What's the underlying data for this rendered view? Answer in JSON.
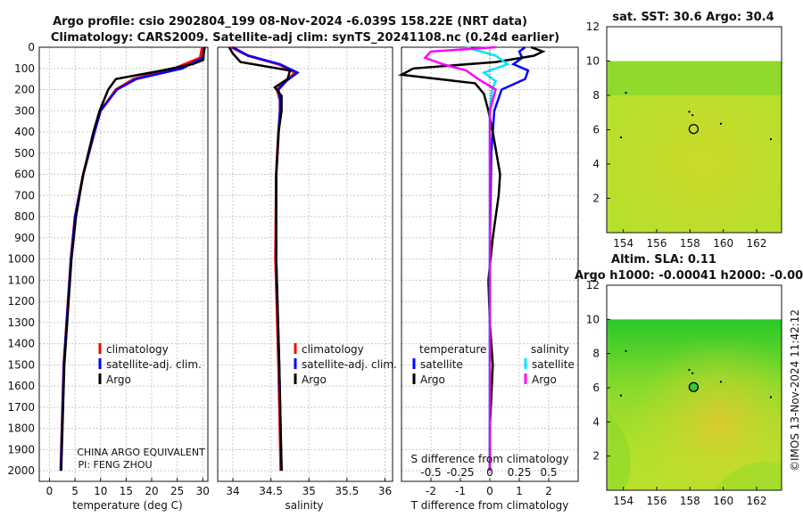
{
  "figure": {
    "title_line1": "Argo profile: csio 2902804_199 08-Nov-2024 -6.039S 158.22E (NRT data)",
    "title_line2": "Climatology: CARS2009. Satellite-adj clim: synTS_20241108.nc (0.24d earlier)",
    "watermark": "©IMOS 13-Nov-2024 11:42:12",
    "pi_line1": "CHINA ARGO EQUIVALENT",
    "pi_line2": "PI: FENG ZHOU"
  },
  "colors": {
    "climatology": "#ff0000",
    "satellite": "#0000ff",
    "argo": "#000000",
    "sat_salinity": "#00e5ff",
    "argo_salinity": "#ff00ff",
    "map_ocean": "#b0e030",
    "map_hot": "#e8c830",
    "map_cool": "#30cc30"
  },
  "chart_data": [
    {
      "type": "line",
      "name": "temperature",
      "xlabel": "temperature (deg C)",
      "xlim": [
        -2,
        31
      ],
      "xticks": [
        0,
        5,
        10,
        15,
        20,
        25,
        30
      ],
      "ylim": [
        0,
        2050
      ],
      "yticks": [
        0,
        100,
        200,
        300,
        400,
        500,
        600,
        700,
        800,
        900,
        1000,
        1100,
        1200,
        1300,
        1400,
        1500,
        1600,
        1700,
        1800,
        1900,
        2000
      ],
      "legend": [
        "climatology",
        "satellite-adj. clim.",
        "Argo"
      ],
      "series": [
        {
          "name": "climatology",
          "depth": [
            0,
            50,
            100,
            150,
            200,
            300,
            400,
            600,
            800,
            1000,
            1500,
            2000
          ],
          "values": [
            29.9,
            29.5,
            24.5,
            16.5,
            13,
            10,
            8.8,
            6.6,
            5,
            4.2,
            2.8,
            2.2
          ]
        },
        {
          "name": "satellite-adj. clim.",
          "depth": [
            0,
            50,
            100,
            150,
            200,
            300,
            400,
            600,
            800,
            1000,
            1500,
            2000
          ],
          "values": [
            30.4,
            30,
            26,
            17,
            13.2,
            10,
            8.8,
            6.6,
            5,
            4.2,
            2.8,
            2.2
          ]
        },
        {
          "name": "Argo",
          "depth": [
            0,
            60,
            80,
            110,
            150,
            200,
            300,
            400,
            600,
            800,
            1000,
            1500,
            2000
          ],
          "values": [
            30.3,
            30.1,
            28,
            22,
            13,
            11.5,
            9.8,
            8.6,
            6.6,
            5.2,
            4.3,
            2.9,
            2.3
          ]
        }
      ]
    },
    {
      "type": "line",
      "name": "salinity",
      "xlabel": "salinity",
      "xlim": [
        33.8,
        36.1
      ],
      "xticks": [
        34,
        34.5,
        35,
        35.5,
        36
      ],
      "ylim": [
        0,
        2050
      ],
      "legend": [
        "climatology",
        "satellite-adj. clim.",
        "Argo"
      ],
      "series": [
        {
          "name": "climatology",
          "depth": [
            0,
            40,
            80,
            120,
            160,
            200,
            250,
            300,
            400,
            600,
            1000,
            1500,
            2000
          ],
          "values": [
            33.98,
            34.2,
            34.6,
            34.82,
            34.7,
            34.58,
            34.62,
            34.62,
            34.6,
            34.57,
            34.56,
            34.6,
            34.63
          ]
        },
        {
          "name": "satellite-adj. clim.",
          "depth": [
            0,
            40,
            80,
            120,
            160,
            200,
            250,
            300,
            400,
            600,
            1000,
            1500,
            2000
          ],
          "values": [
            34.0,
            34.2,
            34.62,
            34.85,
            34.7,
            34.6,
            34.62,
            34.62,
            34.6,
            34.57,
            34.57,
            34.61,
            34.64
          ]
        },
        {
          "name": "Argo",
          "depth": [
            0,
            30,
            70,
            110,
            150,
            190,
            230,
            300,
            400,
            600,
            1000,
            1500,
            2000
          ],
          "values": [
            33.95,
            34.0,
            34.1,
            34.75,
            34.72,
            34.55,
            34.64,
            34.64,
            34.6,
            34.57,
            34.57,
            34.61,
            34.64
          ]
        }
      ]
    },
    {
      "type": "line",
      "name": "difference",
      "xlabel": "T difference from climatology",
      "xlabel_top": "S difference from climatology",
      "xlim": [
        -3,
        3
      ],
      "xticks": [
        -2,
        -1,
        0,
        1,
        2
      ],
      "s_ticks": [
        -0.5,
        -0.25,
        0,
        0.25,
        0.5
      ],
      "s_tick_labels": [
        "-0.5",
        "-0.25",
        "0",
        "0.25",
        "0.5"
      ],
      "ylim": [
        0,
        2050
      ],
      "legend_temperature_title": "temperature",
      "legend_salinity_title": "salinity",
      "legend_entries": [
        "satellite",
        "Argo"
      ],
      "series": [
        {
          "name": "T satellite",
          "depth": [
            0,
            20,
            50,
            80,
            110,
            150,
            200,
            300,
            500,
            1000,
            2000
          ],
          "values": [
            1.2,
            1.0,
            1.1,
            0.8,
            1.3,
            1.2,
            0.4,
            0.15,
            0.05,
            0.0,
            0.0
          ]
        },
        {
          "name": "T Argo",
          "depth": [
            0,
            20,
            40,
            70,
            100,
            130,
            170,
            220,
            300,
            400,
            600,
            700,
            900,
            1100,
            1300,
            1500,
            1800,
            2000
          ],
          "values": [
            1.4,
            1.8,
            1.5,
            0.2,
            -2.6,
            -3.0,
            -0.5,
            -0.2,
            -0.05,
            0.1,
            0.35,
            0.3,
            0.1,
            -0.05,
            0.0,
            0.1,
            0.0,
            0.0
          ]
        },
        {
          "name": "S satellite",
          "depth": [
            0,
            40,
            80,
            120,
            160,
            200,
            300,
            500,
            1000,
            2000
          ],
          "values": [
            -0.2,
            0.05,
            0.15,
            -0.05,
            0.05,
            0.02,
            0.0,
            0.0,
            0.0,
            0.0
          ]
        },
        {
          "name": "S Argo",
          "depth": [
            0,
            20,
            50,
            80,
            110,
            150,
            200,
            300,
            500,
            1000,
            1500,
            2000
          ],
          "values": [
            0.05,
            -0.5,
            -0.55,
            -0.4,
            -0.2,
            -0.1,
            0.05,
            0.0,
            0.0,
            0.0,
            0.0,
            0.0
          ]
        }
      ]
    },
    {
      "type": "heatmap",
      "name": "sst-map",
      "title": "sat. SST: 30.6 Argo: 30.4",
      "xticks": [
        154,
        156,
        158,
        160,
        162
      ],
      "yticks": [
        2,
        4,
        6,
        8,
        10,
        12
      ],
      "xlim": [
        153,
        163.5
      ],
      "ylim": [
        0,
        12
      ],
      "argo_position": [
        158.22,
        6.04
      ]
    },
    {
      "type": "heatmap",
      "name": "sla-map",
      "title_line1": "Altim. SLA: 0.11",
      "title_line2": "Argo h1000: -0.00041 h2000: -0.00",
      "xticks": [
        154,
        156,
        158,
        160,
        162
      ],
      "yticks": [
        2,
        4,
        6,
        8,
        10,
        12
      ],
      "xlim": [
        153,
        163.5
      ],
      "ylim": [
        0,
        12
      ],
      "argo_position": [
        158.22,
        6.04
      ]
    }
  ]
}
